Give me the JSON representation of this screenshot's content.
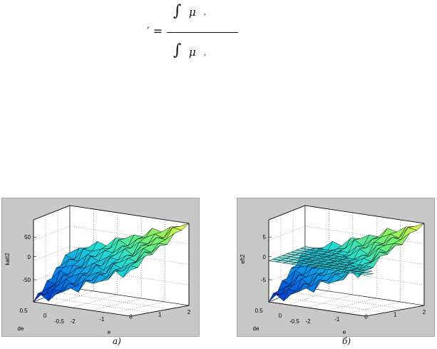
{
  "formula": {
    "lhs": "′ =",
    "numerator_integral": "∫",
    "numerator_mu": "μ",
    "numerator_tail": ",",
    "denominator_integral": "∫",
    "denominator_mu": "μ",
    "denominator_tail": ","
  },
  "figures": [
    {
      "caption": "а)",
      "zlabel": "katt2",
      "xlabel": "e",
      "ylabel": "de",
      "z_ticks": [
        "50",
        "0",
        "-50"
      ],
      "e_ticks": [
        "-2",
        "-1",
        "0",
        "1",
        "2"
      ],
      "de_ticks": [
        "0.5",
        "0",
        "-0.5"
      ]
    },
    {
      "caption": "б)",
      "zlabel": "eft2",
      "xlabel": "e",
      "ylabel": "de",
      "z_ticks": [
        "5",
        "0",
        "-5"
      ],
      "e_ticks": [
        "-2",
        "-1",
        "0",
        "1",
        "2"
      ],
      "de_ticks": [
        "0.5",
        "0",
        "-0.5"
      ]
    }
  ],
  "colors": {
    "panel_bg": "#c8c8c8",
    "axes_bg": "#ffffff",
    "surface_low": "#0040c0",
    "surface_mid": "#20d8d0",
    "surface_high": "#f0f040"
  }
}
